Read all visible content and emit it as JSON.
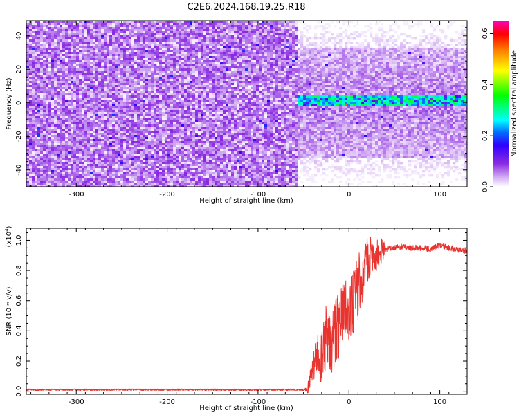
{
  "title": "C2E6.2024.168.19.25.R18",
  "colors": {
    "snr_line": "#e8332f",
    "background": "#ffffff",
    "axis": "#000000"
  },
  "chart_data": [
    {
      "type": "heatmap",
      "name": "spectrogram",
      "xlabel": "Height of straight line (km)",
      "ylabel": "Frequency (Hz)",
      "xlim": [
        -355,
        130
      ],
      "ylim": [
        -50,
        49
      ],
      "xticks": [
        -300,
        -200,
        -100,
        0,
        100
      ],
      "yticks": [
        -40,
        -20,
        0,
        20,
        40
      ],
      "colorbar": {
        "label": "Normalized spectral amplitude",
        "range": [
          0.0,
          0.65
        ],
        "ticks": [
          "0.0",
          "0.2",
          "0.4",
          "0.6"
        ],
        "colormap": [
          "#ffffff",
          "#8a2be2",
          "#5a00ff",
          "#0000ff",
          "#00ffff",
          "#00ff00",
          "#ffff00",
          "#ff7f00",
          "#ff0000",
          "#ff00ff"
        ]
      },
      "noise_region": {
        "x_range": [
          -355,
          -58
        ],
        "freq_range": [
          -50,
          49
        ],
        "typical_amplitude": 0.05
      },
      "signal_region": {
        "x_range": [
          -58,
          130
        ],
        "noise_freq_halfwidth": 33,
        "tone_freq_hz": 1.5,
        "tone_amplitude": [
          0.2,
          0.35
        ]
      }
    },
    {
      "type": "line",
      "name": "snr",
      "xlabel": "Height of straight line (km)",
      "ylabel": "SNR (10 * v/v)",
      "ylabel_scale": "(x10",
      "ylabel_scale_exp": "4",
      "ylabel_scale_close": ")",
      "xlim": [
        -355,
        130
      ],
      "ylim": [
        -0.02,
        1.08
      ],
      "xticks": [
        -300,
        -200,
        -100,
        0,
        100
      ],
      "yticks": [
        "0.0",
        "0.2",
        "0.4",
        "0.6",
        "0.8",
        "1.0"
      ],
      "series": [
        {
          "x": [
            -355,
            -300,
            -200,
            -100,
            -50,
            -45,
            -40,
            -35,
            -30,
            -25,
            -20,
            -15,
            -10,
            -5,
            0,
            5,
            10,
            15,
            20,
            25,
            30,
            35,
            40,
            50,
            60,
            70,
            80,
            90,
            100,
            110,
            120,
            130
          ],
          "y": [
            0.01,
            0.01,
            0.01,
            0.01,
            0.01,
            0.02,
            0.15,
            0.25,
            0.22,
            0.35,
            0.3,
            0.4,
            0.45,
            0.55,
            0.52,
            0.6,
            0.68,
            0.8,
            0.86,
            0.88,
            0.9,
            0.93,
            0.94,
            0.95,
            0.96,
            0.95,
            0.95,
            0.94,
            0.97,
            0.95,
            0.94,
            0.93
          ]
        }
      ]
    }
  ]
}
